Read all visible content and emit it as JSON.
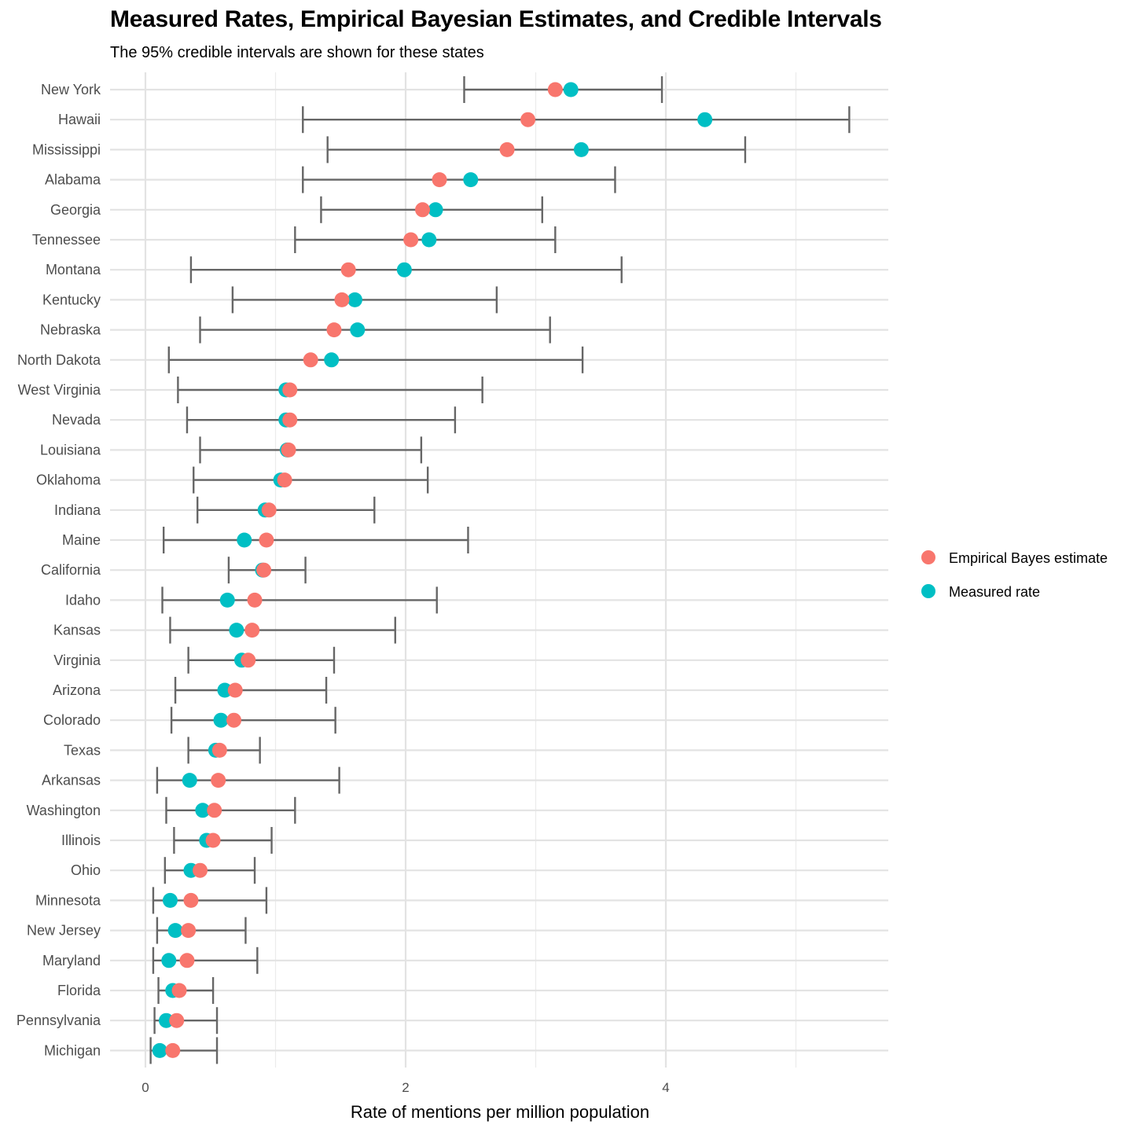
{
  "chart_data": {
    "type": "scatter",
    "title": "Measured Rates, Empirical Bayesian Estimates, and Credible Intervals",
    "subtitle": "The 95% credible intervals are shown for these states",
    "xlabel": "Rate of mentions per million population",
    "ylabel": "",
    "xlim": [
      -0.27,
      5.7
    ],
    "x_ticks": [
      "0",
      "2",
      "4"
    ],
    "grid": true,
    "legend_position": "right",
    "colors": {
      "estimate": "#F8766D",
      "measured": "#00BFC4",
      "interval": "#666666"
    },
    "legend": [
      {
        "name": "Empirical Bayes estimate",
        "color": "#F8766D"
      },
      {
        "name": "Measured rate",
        "color": "#00BFC4"
      }
    ],
    "states": [
      "New York",
      "Hawaii",
      "Mississippi",
      "Alabama",
      "Georgia",
      "Tennessee",
      "Montana",
      "Kentucky",
      "Nebraska",
      "North Dakota",
      "West Virginia",
      "Nevada",
      "Louisiana",
      "Oklahoma",
      "Indiana",
      "Maine",
      "California",
      "Idaho",
      "Kansas",
      "Virginia",
      "Arizona",
      "Colorado",
      "Texas",
      "Arkansas",
      "Washington",
      "Illinois",
      "Ohio",
      "Minnesota",
      "New Jersey",
      "Maryland",
      "Florida",
      "Pennsylvania",
      "Michigan"
    ],
    "series": [
      {
        "name": "Empirical Bayes estimate",
        "values": [
          3.15,
          2.94,
          2.78,
          2.26,
          2.13,
          2.04,
          1.56,
          1.51,
          1.45,
          1.27,
          1.11,
          1.11,
          1.1,
          1.07,
          0.95,
          0.93,
          0.91,
          0.84,
          0.82,
          0.79,
          0.69,
          0.68,
          0.57,
          0.56,
          0.53,
          0.52,
          0.42,
          0.35,
          0.33,
          0.32,
          0.26,
          0.24,
          0.21
        ]
      },
      {
        "name": "Measured rate",
        "values": [
          3.27,
          4.3,
          3.35,
          2.5,
          2.23,
          2.18,
          1.99,
          1.61,
          1.63,
          1.43,
          1.08,
          1.08,
          1.09,
          1.04,
          0.92,
          0.76,
          0.9,
          0.63,
          0.7,
          0.74,
          0.61,
          0.58,
          0.54,
          0.34,
          0.44,
          0.47,
          0.35,
          0.19,
          0.23,
          0.18,
          0.21,
          0.16,
          0.11
        ]
      }
    ],
    "lower": [
      2.45,
      1.21,
      1.4,
      1.21,
      1.35,
      1.15,
      0.35,
      0.67,
      0.42,
      0.18,
      0.25,
      0.32,
      0.42,
      0.37,
      0.4,
      0.14,
      0.64,
      0.13,
      0.19,
      0.33,
      0.23,
      0.2,
      0.33,
      0.09,
      0.16,
      0.22,
      0.15,
      0.06,
      0.09,
      0.06,
      0.1,
      0.07,
      0.04
    ],
    "upper": [
      3.97,
      5.41,
      4.61,
      3.61,
      3.05,
      3.15,
      3.66,
      2.7,
      3.11,
      3.36,
      2.59,
      2.38,
      2.12,
      2.17,
      1.76,
      2.48,
      1.23,
      2.24,
      1.92,
      1.45,
      1.39,
      1.46,
      0.88,
      1.49,
      1.15,
      0.97,
      0.84,
      0.93,
      0.77,
      0.86,
      0.52,
      0.55,
      0.55
    ]
  }
}
